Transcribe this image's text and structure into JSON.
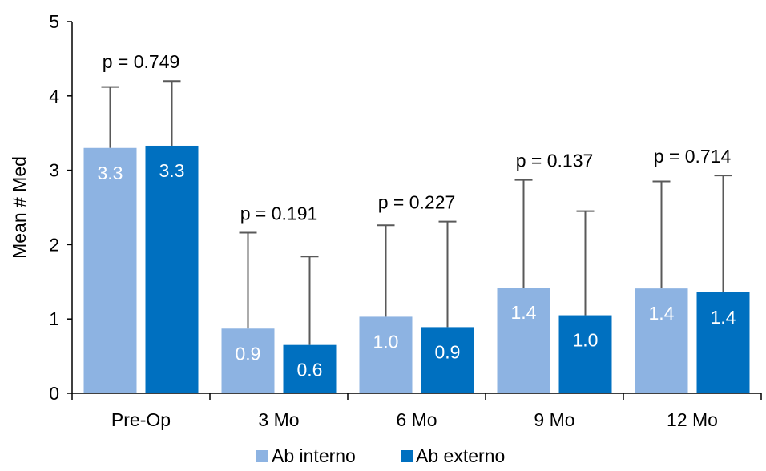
{
  "chart_data": {
    "type": "bar",
    "title": "",
    "xlabel": "",
    "ylabel": "Mean # Med",
    "ylim": [
      0,
      5
    ],
    "yticks": [
      "0",
      "1",
      "2",
      "3",
      "4",
      "5"
    ],
    "grid": false,
    "legend_position": "bottom",
    "categories": [
      "Pre-Op",
      "3 Mo",
      "6 Mo",
      "9 Mo",
      "12 Mo"
    ],
    "p_values": [
      "p = 0.749",
      "p = 0.191",
      "p = 0.227",
      "p = 0.137",
      "p = 0.714"
    ],
    "series": [
      {
        "name": "Ab interno",
        "color": "#8DB3E2",
        "values": [
          3.3,
          0.87,
          1.03,
          1.42,
          1.41
        ],
        "error_upper": [
          4.12,
          2.16,
          2.26,
          2.87,
          2.85
        ],
        "labels": [
          "3.3",
          "0.9",
          "1.0",
          "1.4",
          "1.4"
        ]
      },
      {
        "name": "Ab externo",
        "color": "#0070C0",
        "values": [
          3.33,
          0.65,
          0.89,
          1.05,
          1.36
        ],
        "error_upper": [
          4.2,
          1.84,
          2.31,
          2.45,
          2.93
        ],
        "labels": [
          "3.3",
          "0.6",
          "0.9",
          "1.0",
          "1.4"
        ]
      }
    ],
    "error_bar_color": "#595959"
  }
}
